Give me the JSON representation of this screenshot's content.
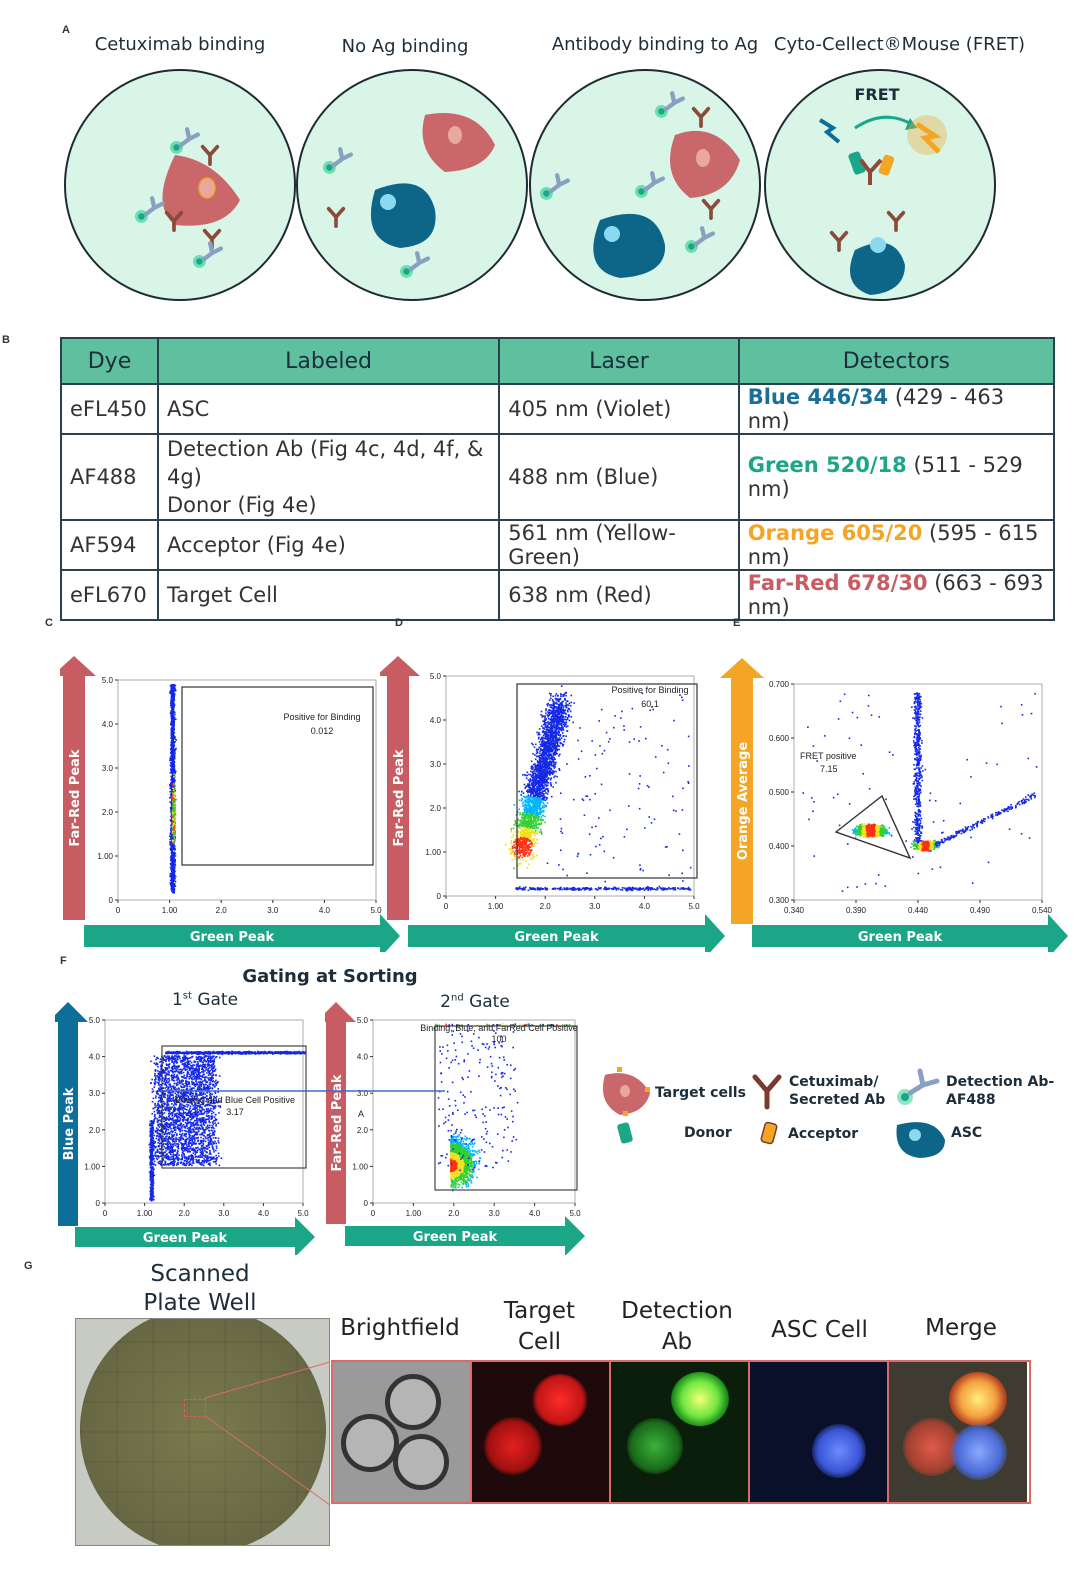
{
  "panelA": {
    "label": "A",
    "titles": [
      "Cetuximab binding",
      "No Ag binding",
      "Antibody binding to Ag",
      "Cyto-Cellect®Mouse (FRET)"
    ],
    "fret_word": "FRET"
  },
  "panelB": {
    "label": "B",
    "headers": [
      "Dye",
      "Labeled",
      "Laser",
      "Detectors"
    ],
    "rows": [
      {
        "dye": "eFL450",
        "labeled": "ASC",
        "laser": "405 nm (Violet)",
        "det_name": "Blue 446/34",
        "det_range": " (429 - 463 nm)",
        "det_color": "#1a6f99"
      },
      {
        "dye": "AF488",
        "labeled": "Detection Ab (Fig 4c, 4d, 4f, & 4g)",
        "labeled2": "Donor (Fig 4e)",
        "laser": "488 nm (Blue)",
        "det_name": "Green 520/18",
        "det_range": " (511 - 529 nm)",
        "det_color": "#1aa687"
      },
      {
        "dye": "AF594",
        "labeled": "Acceptor (Fig 4e)",
        "laser": "561 nm (Yellow-Green)",
        "det_name": "Orange 605/20",
        "det_range": " (595 - 615 nm)",
        "det_color": "#f4a525"
      },
      {
        "dye": "eFL670",
        "labeled": "Target Cell",
        "laser": "638 nm (Red)",
        "det_name": "Far-Red 678/30",
        "det_range": " (663 - 693 nm)",
        "det_color": "#c75c63"
      }
    ]
  },
  "panelC": {
    "label": "C",
    "y_axis": "Far-Red Peak",
    "x_axis": "Green Peak",
    "gate_label": "Positive for Binding",
    "gate_value": "0.012",
    "x_ticks": [
      "0",
      "1.00",
      "2.0",
      "3.0",
      "4.0",
      "5.0"
    ],
    "y_ticks": [
      "0",
      "1.00",
      "2.0",
      "3.0",
      "4.0",
      "5.0"
    ]
  },
  "panelD": {
    "label": "D",
    "y_axis": "Far-Red Peak",
    "x_axis": "Green Peak",
    "gate_label": "Positive for Binding",
    "gate_value": "60.1",
    "x_ticks": [
      "0",
      "1.00",
      "2.0",
      "3.0",
      "4.0",
      "5.0"
    ],
    "y_ticks": [
      "0",
      "1.00",
      "2.0",
      "3.0",
      "4.0",
      "5.0"
    ]
  },
  "panelE": {
    "label": "E",
    "y_axis": "Orange Average",
    "x_axis": "Green Peak",
    "gate_label": "FRET positive",
    "gate_value": "7.15",
    "x_ticks": [
      "0.340",
      "0.390",
      "0.440",
      "0.490",
      "0.540"
    ],
    "y_ticks": [
      "0.300",
      "0.400",
      "0.500",
      "0.600",
      "0.700"
    ]
  },
  "panelF": {
    "label": "F",
    "title": "Gating at Sorting",
    "gate1_title": "1st Gate",
    "gate1_sup": "st",
    "gate1_num": "1",
    "gate1_word": " Gate",
    "gate2_num": "2",
    "gate2_sup": "nd",
    "gate2_word": " Gate",
    "plot1": {
      "y_axis": "Blue Peak",
      "x_axis": "Green Peak",
      "gate_label": "Binding and Blue Cell Positive",
      "gate_value": "3.17",
      "x_ticks": [
        "0",
        "1.00",
        "2.0",
        "3.0",
        "4.0",
        "5.0"
      ],
      "y_ticks": [
        "0",
        "1.00",
        "2.0",
        "3.0",
        "4.0",
        "5.0"
      ]
    },
    "plot2": {
      "y_axis": "Far-Red Peak",
      "x_axis": "Green Peak",
      "gate_label": "Binding, Blue, and FarRed Cell Positive",
      "gate_value": "100",
      "marker": "A",
      "x_ticks": [
        "0",
        "1.00",
        "2.0",
        "3.0",
        "4.0",
        "5.0"
      ],
      "y_ticks": [
        "0",
        "1.00",
        "2.0",
        "3.0",
        "4.0",
        "5.0"
      ]
    },
    "legend": {
      "target": "Target cells",
      "cetuximab": "Cetuximab/\nSecreted Ab",
      "detection": "Detection Ab-\nAF488",
      "donor": "Donor",
      "acceptor": "Acceptor",
      "asc": "ASC"
    }
  },
  "panelG": {
    "label": "G",
    "well_title": "Scanned\nPlate Well",
    "images": [
      {
        "label": "Brightfield",
        "color": "#1d2d3a"
      },
      {
        "label": "Target\nCell",
        "color": "#e0474d"
      },
      {
        "label": "Detection\nAb",
        "color": "#1aa687"
      },
      {
        "label": "ASC Cell",
        "color": "#3b7ed6"
      },
      {
        "label": "Merge",
        "color": "#1d2d3a"
      }
    ]
  },
  "colors": {
    "cell_bg": "#d8f5e8",
    "target": "#c9676a",
    "asc": "#0d6688",
    "green": "#1aa687",
    "farred": "#c75c63",
    "orange": "#f4a525",
    "blue": "#0d6f99",
    "header": "#5fc09f"
  }
}
